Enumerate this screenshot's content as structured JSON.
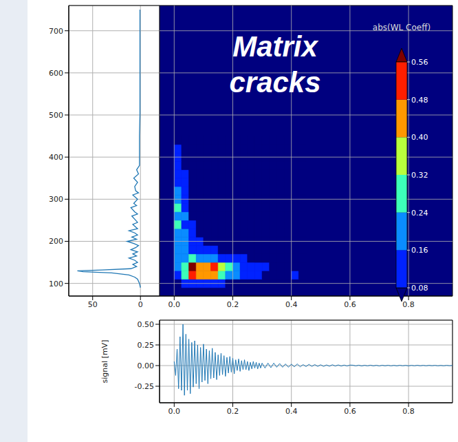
{
  "chart_data": [
    {
      "type": "line",
      "color": "#1f77b4",
      "grid": true,
      "x": [
        0,
        1,
        3,
        6,
        12,
        30,
        60,
        66,
        40,
        10,
        4,
        8,
        3,
        6,
        12,
        4,
        8,
        3,
        10,
        5,
        2,
        7,
        14,
        4,
        9,
        3,
        6,
        12,
        3,
        8,
        3,
        5,
        9,
        3,
        6,
        10,
        4,
        7,
        3,
        8,
        2,
        5,
        6,
        3,
        7,
        2,
        4,
        1,
        1,
        1,
        0.5,
        0.5,
        0.5,
        0.5
      ],
      "y": [
        90,
        100,
        110,
        115,
        120,
        125,
        128,
        130,
        132,
        135,
        140,
        145,
        150,
        155,
        160,
        165,
        170,
        175,
        180,
        185,
        190,
        195,
        200,
        205,
        210,
        215,
        220,
        225,
        230,
        240,
        245,
        250,
        260,
        265,
        270,
        280,
        285,
        290,
        300,
        310,
        315,
        320,
        330,
        340,
        350,
        360,
        370,
        380,
        400,
        450,
        500,
        600,
        700,
        750
      ],
      "xlim": [
        75,
        -20
      ],
      "xticks": [
        50,
        0
      ],
      "ylim": [
        70,
        760
      ],
      "yticks": [
        100,
        200,
        300,
        400,
        500,
        600,
        700
      ]
    },
    {
      "type": "heatmap",
      "annotation": "Matrix cracks",
      "grid": true,
      "tick_labels": "x",
      "x_edges": [
        0,
        0.025,
        0.05,
        0.075,
        0.1,
        0.125,
        0.15,
        0.175,
        0.2,
        0.225,
        0.25,
        0.275,
        0.3,
        0.325,
        0.35,
        0.375,
        0.4,
        0.425,
        0.45
      ],
      "y_edges": [
        90,
        110,
        130,
        150,
        170,
        190,
        210,
        230,
        250,
        270,
        290,
        310,
        330,
        350,
        370,
        390,
        410,
        430,
        450
      ],
      "cells": [
        [
          0.06,
          0.1,
          0.14,
          0.12,
          0.12,
          0.1,
          0.09,
          0.07,
          0.05,
          0.04,
          0.03,
          0.02,
          0.02,
          0.01,
          0.01,
          0.01,
          0.01,
          0
        ],
        [
          0.14,
          0.26,
          0.52,
          0.42,
          0.4,
          0.46,
          0.3,
          0.2,
          0.16,
          0.12,
          0.1,
          0.08,
          0.06,
          0.05,
          0.04,
          0.02,
          0.09,
          0.02
        ],
        [
          0.18,
          0.3,
          0.58,
          0.44,
          0.44,
          0.5,
          0.34,
          0.24,
          0.18,
          0.14,
          0.12,
          0.1,
          0.09,
          0.06,
          0.05,
          0.03,
          0.06,
          0.01
        ],
        [
          0.16,
          0.22,
          0.26,
          0.2,
          0.22,
          0.2,
          0.14,
          0.12,
          0.1,
          0.08,
          0.07,
          0.05,
          0.03,
          0.02,
          0.02,
          0.01,
          0.01,
          0
        ],
        [
          0.2,
          0.18,
          0.14,
          0.12,
          0.1,
          0.09,
          0.06,
          0.05,
          0.04,
          0.03,
          0.02,
          0.01,
          0.01,
          0,
          0,
          0,
          0,
          0
        ],
        [
          0.22,
          0.16,
          0.1,
          0.08,
          0.06,
          0.04,
          0.03,
          0.02,
          0.02,
          0.01,
          0,
          0,
          0,
          0,
          0,
          0,
          0,
          0
        ],
        [
          0.2,
          0.18,
          0.09,
          0.07,
          0.05,
          0.03,
          0.02,
          0.01,
          0.01,
          0,
          0,
          0,
          0,
          0,
          0,
          0,
          0,
          0
        ],
        [
          0.24,
          0.14,
          0.08,
          0.05,
          0.03,
          0.02,
          0.01,
          0,
          0,
          0,
          0,
          0,
          0,
          0,
          0,
          0,
          0,
          0
        ],
        [
          0.18,
          0.2,
          0.07,
          0.04,
          0.02,
          0.01,
          0,
          0,
          0,
          0,
          0,
          0,
          0,
          0,
          0,
          0,
          0,
          0
        ],
        [
          0.26,
          0.14,
          0.06,
          0.03,
          0.02,
          0.01,
          0,
          0,
          0,
          0,
          0,
          0,
          0,
          0,
          0,
          0,
          0,
          0
        ],
        [
          0.2,
          0.12,
          0.05,
          0.03,
          0.01,
          0,
          0,
          0,
          0,
          0,
          0,
          0,
          0,
          0,
          0,
          0,
          0,
          0
        ],
        [
          0.18,
          0.1,
          0.04,
          0.02,
          0,
          0,
          0,
          0,
          0,
          0,
          0,
          0,
          0,
          0,
          0,
          0,
          0,
          0
        ],
        [
          0.14,
          0.09,
          0.03,
          0.01,
          0,
          0,
          0,
          0,
          0,
          0,
          0,
          0,
          0,
          0,
          0,
          0,
          0,
          0
        ],
        [
          0.12,
          0.08,
          0.02,
          0,
          0,
          0,
          0,
          0,
          0,
          0,
          0,
          0,
          0,
          0,
          0,
          0,
          0,
          0
        ],
        [
          0.1,
          0.06,
          0.01,
          0,
          0,
          0,
          0,
          0,
          0,
          0,
          0,
          0,
          0,
          0,
          0,
          0,
          0,
          0
        ],
        [
          0.09,
          0.04,
          0,
          0,
          0,
          0,
          0,
          0,
          0,
          0,
          0,
          0,
          0,
          0,
          0,
          0,
          0,
          0
        ],
        [
          0.09,
          0.03,
          0,
          0,
          0,
          0,
          0,
          0,
          0,
          0,
          0,
          0,
          0,
          0,
          0,
          0,
          0,
          0
        ],
        [
          0.04,
          0.02,
          0,
          0,
          0,
          0,
          0,
          0,
          0,
          0,
          0,
          0,
          0,
          0,
          0,
          0,
          0,
          0
        ]
      ],
      "xlim": [
        -0.05,
        0.95
      ],
      "xticks": [
        {
          "value": 0,
          "label": "0.0"
        },
        {
          "value": 0.2,
          "label": "0.2"
        },
        {
          "value": 0.4,
          "label": "0.4"
        },
        {
          "value": 0.6,
          "label": "0.6"
        },
        {
          "value": 0.8,
          "label": "0.8"
        }
      ],
      "ylim": [
        70,
        760
      ],
      "yticks": [
        100,
        200,
        300,
        400,
        500,
        600,
        700
      ],
      "colorbar": {
        "label": "abs(WL Coeff)",
        "range": [
          0.08,
          0.56
        ],
        "ticks": [
          0.08,
          0.16,
          0.24,
          0.32,
          {
            "value": 0.4,
            "label": "0.40"
          },
          0.48,
          0.56
        ],
        "colors": [
          "#00007f",
          "#0022ff",
          "#0a8cff",
          "#3dffb9",
          "#b9ff3d",
          "#ff9800",
          "#ff1e00",
          "#7f0000"
        ]
      }
    },
    {
      "type": "line",
      "color": "#1f77b4",
      "grid": true,
      "ylabel": "signal [mV]",
      "x": [
        0,
        0.005,
        0.01,
        0.015,
        0.02,
        0.025,
        0.03,
        0.035,
        0.04,
        0.045,
        0.05,
        0.055,
        0.06,
        0.065,
        0.07,
        0.075,
        0.08,
        0.085,
        0.09,
        0.095,
        0.1,
        0.105,
        0.11,
        0.115,
        0.12,
        0.125,
        0.13,
        0.135,
        0.14,
        0.145,
        0.15,
        0.155,
        0.16,
        0.165,
        0.17,
        0.175,
        0.18,
        0.185,
        0.19,
        0.195,
        0.2,
        0.205,
        0.21,
        0.215,
        0.22,
        0.225,
        0.23,
        0.235,
        0.24,
        0.245,
        0.25,
        0.255,
        0.26,
        0.265,
        0.27,
        0.275,
        0.28,
        0.285,
        0.29,
        0.295,
        0.3,
        0.31,
        0.32,
        0.33,
        0.34,
        0.35,
        0.36,
        0.37,
        0.38,
        0.39,
        0.4,
        0.41,
        0.42,
        0.43,
        0.44,
        0.45,
        0.46,
        0.47,
        0.48,
        0.49,
        0.5,
        0.51,
        0.52,
        0.53,
        0.54,
        0.55,
        0.56,
        0.57,
        0.58,
        0.59,
        0.6,
        0.61,
        0.62,
        0.63,
        0.64,
        0.65,
        0.66,
        0.67,
        0.68,
        0.69,
        0.7,
        0.71,
        0.72,
        0.73,
        0.74,
        0.75,
        0.76,
        0.77,
        0.78,
        0.79,
        0.8,
        0.81,
        0.82,
        0.83,
        0.84,
        0.85,
        0.86,
        0.87,
        0.88,
        0.89,
        0.9,
        0.91,
        0.92,
        0.93,
        0.94,
        0.95
      ],
      "values": [
        0.05,
        -0.12,
        0.2,
        -0.28,
        0.35,
        -0.3,
        0.5,
        -0.36,
        0.38,
        -0.3,
        0.32,
        -0.34,
        0.28,
        -0.26,
        0.3,
        -0.22,
        0.25,
        -0.28,
        0.22,
        -0.2,
        0.26,
        -0.18,
        0.2,
        -0.22,
        0.18,
        -0.16,
        0.21,
        -0.15,
        0.16,
        -0.17,
        0.13,
        -0.12,
        0.15,
        -0.11,
        0.12,
        -0.13,
        0.1,
        -0.09,
        0.11,
        -0.08,
        0.09,
        -0.1,
        0.07,
        -0.06,
        0.08,
        -0.07,
        0.06,
        -0.05,
        0.07,
        -0.05,
        0.05,
        -0.06,
        0.04,
        -0.04,
        0.05,
        -0.03,
        0.04,
        -0.04,
        0.03,
        -0.03,
        0.03,
        -0.03,
        0.03,
        -0.025,
        0.03,
        -0.02,
        0.025,
        -0.02,
        0.02,
        -0.02,
        0.018,
        -0.015,
        0.02,
        -0.015,
        0.012,
        -0.012,
        0.015,
        -0.01,
        0.012,
        -0.01,
        0.01,
        -0.01,
        0.008,
        -0.008,
        0.01,
        -0.006,
        0.008,
        -0.006,
        0.006,
        -0.005,
        0.006,
        0.005,
        -0.004,
        0.005,
        -0.005,
        0.004,
        -0.004,
        0.005,
        -0.004,
        0.004,
        -0.005,
        0.004,
        -0.003,
        0.004,
        -0.004,
        0.003,
        -0.004,
        0.004,
        -0.003,
        0.003,
        -0.004,
        0.003,
        -0.003,
        0.004,
        -0.003,
        0.003,
        -0.003,
        0.003,
        -0.002,
        0.003,
        -0.003,
        0.002,
        -0.003,
        0.003,
        -0.002,
        0.002
      ],
      "xlim": [
        -0.05,
        0.95
      ],
      "xticks": [
        {
          "value": 0,
          "label": "0.0"
        },
        {
          "value": 0.2,
          "label": "0.2"
        },
        {
          "value": 0.4,
          "label": "0.4"
        },
        {
          "value": 0.6,
          "label": "0.6"
        },
        {
          "value": 0.8,
          "label": "0.8"
        }
      ],
      "ylim": [
        -0.45,
        0.55
      ],
      "yticks": [
        -0.25,
        {
          "value": 0,
          "label": "0.00"
        },
        0.25,
        {
          "value": 0.5,
          "label": "0.50"
        }
      ]
    }
  ]
}
